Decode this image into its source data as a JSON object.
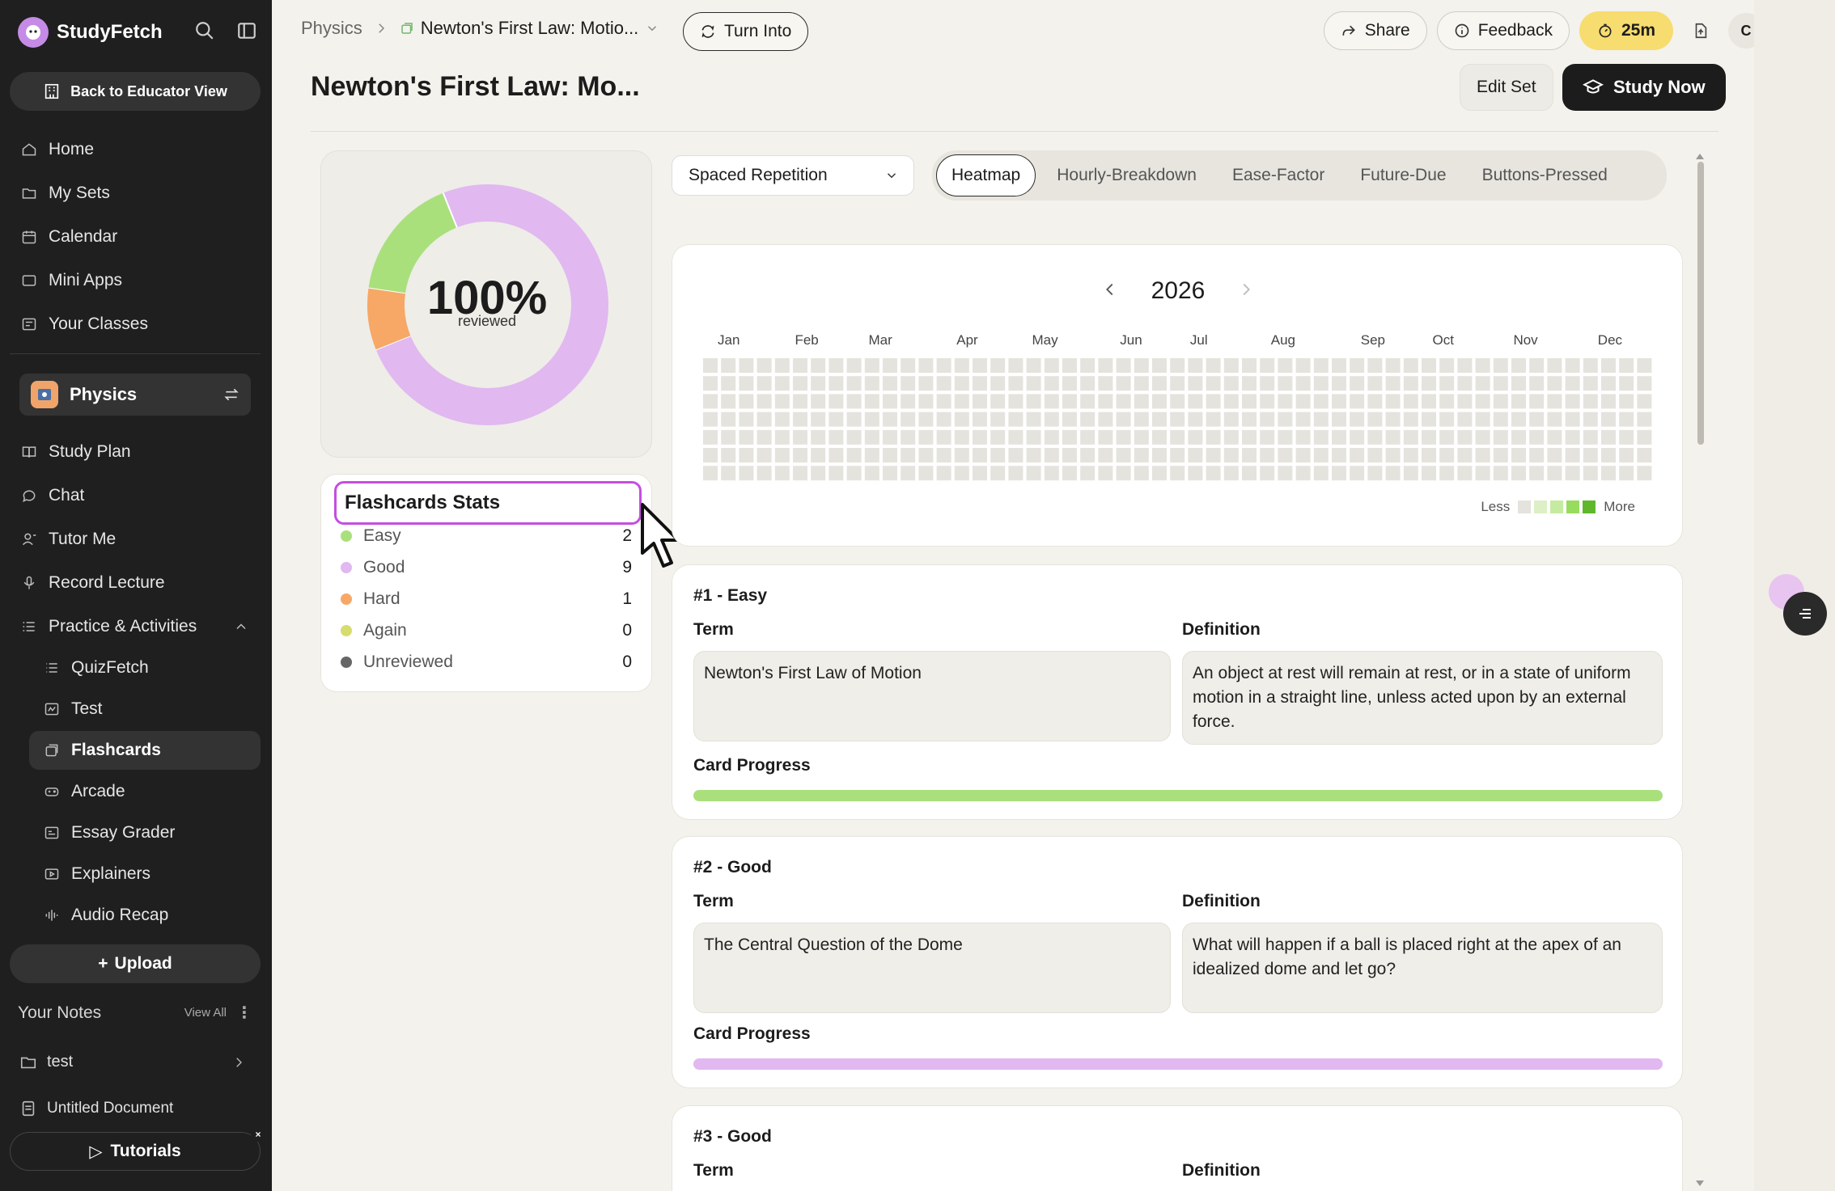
{
  "app": {
    "name": "StudyFetch"
  },
  "sidebar": {
    "educator_button": "Back to Educator View",
    "nav": [
      {
        "label": "Home",
        "icon": "home-icon"
      },
      {
        "label": "My Sets",
        "icon": "folder-icon"
      },
      {
        "label": "Calendar",
        "icon": "calendar-icon"
      },
      {
        "label": "Mini Apps",
        "icon": "app-icon"
      },
      {
        "label": "Your Classes",
        "icon": "classes-icon"
      }
    ],
    "class_name": "Physics",
    "class_nav": [
      {
        "label": "Study Plan",
        "icon": "book-icon"
      },
      {
        "label": "Chat",
        "icon": "chat-icon"
      },
      {
        "label": "Tutor Me",
        "icon": "tutor-icon"
      },
      {
        "label": "Record Lecture",
        "icon": "mic-icon"
      },
      {
        "label": "Practice & Activities",
        "icon": "list-icon"
      }
    ],
    "activities": [
      {
        "label": "QuizFetch",
        "icon": "quiz-icon",
        "active": false
      },
      {
        "label": "Test",
        "icon": "test-icon",
        "active": false
      },
      {
        "label": "Flashcards",
        "icon": "flashcards-icon",
        "active": true
      },
      {
        "label": "Arcade",
        "icon": "gamepad-icon",
        "active": false
      },
      {
        "label": "Essay Grader",
        "icon": "essay-icon",
        "active": false
      },
      {
        "label": "Explainers",
        "icon": "video-icon",
        "active": false
      },
      {
        "label": "Audio Recap",
        "icon": "audio-icon",
        "active": false
      }
    ],
    "upload_label": "Upload",
    "notes_heading": "Your Notes",
    "notes_view_all": "View All",
    "notes": [
      {
        "label": "test",
        "icon": "folder-icon"
      },
      {
        "label": "Untitled Document",
        "icon": "document-icon"
      }
    ],
    "tutorials_label": "Tutorials"
  },
  "topbar": {
    "breadcrumb_root": "Physics",
    "breadcrumb_current": "Newton's First Law: Motio...",
    "turn_into": "Turn Into",
    "share": "Share",
    "feedback": "Feedback",
    "timer": "25m",
    "avatar": "C"
  },
  "page": {
    "title": "Newton's First Law: Mo...",
    "edit_set": "Edit Set",
    "study_now": "Study Now"
  },
  "summary": {
    "percent": "100%",
    "sub": "reviewed",
    "segments": [
      {
        "name": "Good",
        "value": 9,
        "color": "#e1b8f0"
      },
      {
        "name": "Hard",
        "value": 1,
        "color": "#f7a766"
      },
      {
        "name": "Easy",
        "value": 2,
        "color": "#a9e07c"
      }
    ]
  },
  "stats": {
    "title": "Flashcards Stats",
    "rows": [
      {
        "label": "Easy",
        "count": "2",
        "color": "#a9e07c"
      },
      {
        "label": "Good",
        "count": "9",
        "color": "#e1b8f0"
      },
      {
        "label": "Hard",
        "count": "1",
        "color": "#f7a766"
      },
      {
        "label": "Again",
        "count": "0",
        "color": "#d7dc6c"
      },
      {
        "label": "Unreviewed",
        "count": "0",
        "color": "#666666"
      }
    ]
  },
  "mode": {
    "selected": "Spaced Repetition"
  },
  "tabs": [
    "Heatmap",
    "Hourly-Breakdown",
    "Ease-Factor",
    "Future-Due",
    "Buttons-Pressed"
  ],
  "heatmap": {
    "year": "2026",
    "months": [
      "Jan",
      "Feb",
      "Mar",
      "Apr",
      "May",
      "Jun",
      "Jul",
      "Aug",
      "Sep",
      "Oct",
      "Nov",
      "Dec"
    ],
    "legend_less": "Less",
    "legend_more": "More",
    "legend_colors": [
      "#e4e3dd",
      "#dcefc6",
      "#c5eba0",
      "#97dc5d",
      "#5fb82a"
    ],
    "empty_color": "#e4e3dd"
  },
  "cards": [
    {
      "title": "#1 - Easy",
      "term_label": "Term",
      "definition_label": "Definition",
      "term": "Newton's First Law of Motion",
      "definition": "An object at rest will remain at rest, or in a state of uniform motion in a straight line, unless acted upon by an external force.",
      "progress_label": "Card Progress",
      "progress": 1.0,
      "color": "#a9e07c"
    },
    {
      "title": "#2 - Good",
      "term_label": "Term",
      "definition_label": "Definition",
      "term": "The Central Question of the Dome",
      "definition": "What will happen if a ball is placed right at the apex of an idealized dome and let go?",
      "progress_label": "Card Progress",
      "progress": 1.0,
      "color": "#e1b8f0"
    },
    {
      "title": "#3 - Good",
      "term_label": "Term",
      "definition_label": "Definition"
    }
  ]
}
